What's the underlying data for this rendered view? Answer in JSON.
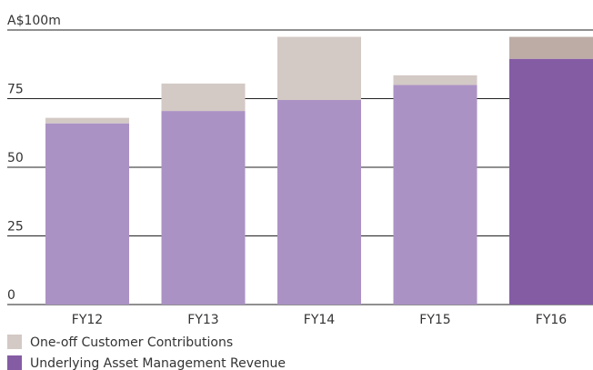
{
  "chart_data": {
    "type": "stacked_bar",
    "categories": [
      "FY12",
      "FY13",
      "FY14",
      "FY15",
      "FY16"
    ],
    "series": [
      {
        "name": "One-off Customer Contributions",
        "colors": [
          "#d3c9c5",
          "#d3c9c5",
          "#d3c9c5",
          "#d3c9c5",
          "#bdaca6"
        ],
        "values": [
          2,
          10,
          23,
          3.5,
          8
        ]
      },
      {
        "name": "Underlying Asset Management Revenue",
        "colors": [
          "#ab92c4",
          "#ab92c4",
          "#ab92c4",
          "#ab92c4",
          "#845ca4"
        ],
        "values": [
          66,
          70.5,
          74.5,
          80,
          89.5
        ]
      }
    ],
    "ylim": [
      0,
      100
    ],
    "yticks": [
      0,
      25,
      50,
      75,
      {
        "value": 100,
        "label": "A$100m"
      }
    ],
    "grid": true
  }
}
